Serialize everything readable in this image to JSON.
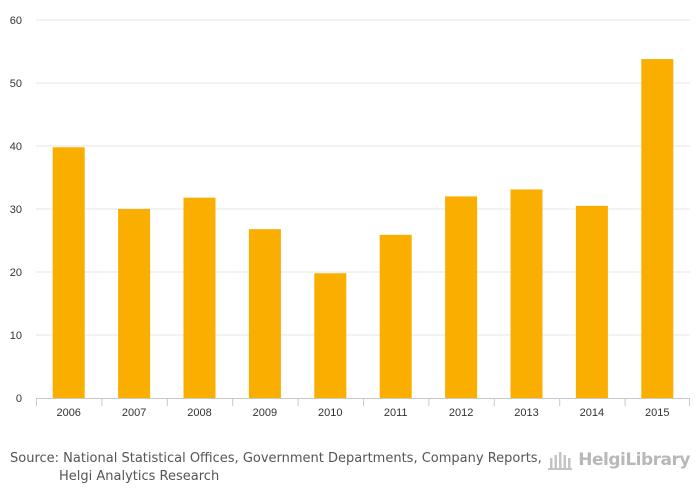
{
  "chart_data": {
    "type": "bar",
    "title": "",
    "xlabel": "",
    "ylabel": "",
    "categories": [
      "2006",
      "2007",
      "2008",
      "2009",
      "2010",
      "2011",
      "2012",
      "2013",
      "2014",
      "2015"
    ],
    "values": [
      39.8,
      30.0,
      31.8,
      26.8,
      19.8,
      25.9,
      32.0,
      33.1,
      30.5,
      53.8
    ],
    "ylim": [
      0,
      60
    ],
    "yticks": [
      "0",
      "10",
      "20",
      "30",
      "40",
      "50",
      "60"
    ],
    "grid": true,
    "bar_color": "#f9ae00"
  },
  "footer": {
    "source_line1": "Source: National Statistical Offices, Government Departments, Company Reports,",
    "source_line2": "Helgi Analytics Research",
    "logo_text": "HelgiLibrary",
    "logo_icon": "library-building-icon"
  }
}
